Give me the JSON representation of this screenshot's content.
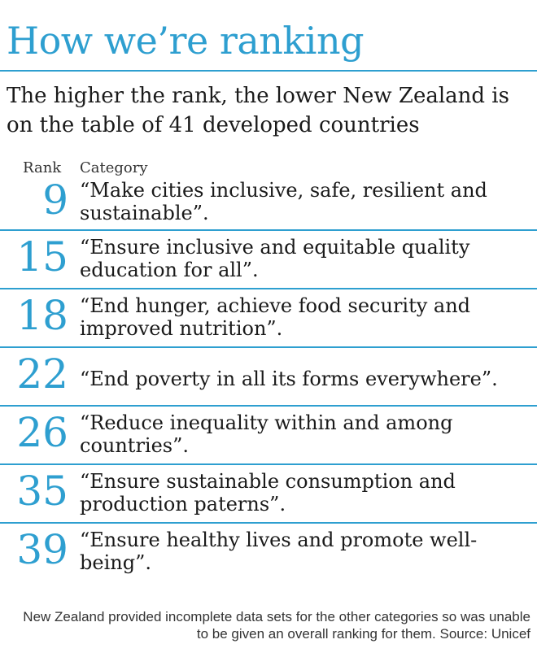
{
  "title": "How we’re ranking",
  "subtitle": "The higher the rank, the lower New Zealand is on the table of 41 developed countries",
  "headers": {
    "rank": "Rank",
    "category": "Category"
  },
  "footnote": "New Zealand provided incomplete data sets for the other categories so was unable to be given an overall ranking for them.  Source: Unicef",
  "colors": {
    "accent": "#2e9fd0",
    "text": "#1a1a1a"
  },
  "chart_data": {
    "type": "table",
    "columns": [
      "Rank",
      "Category"
    ],
    "rows": [
      {
        "rank": "9",
        "category": "“Make cities inclusive, safe, resilient and sustainable”."
      },
      {
        "rank": "15",
        "category": "“Ensure inclusive and equitable quality education for all”."
      },
      {
        "rank": "18",
        "category": "“End hunger, achieve food security and improved nutrition”."
      },
      {
        "rank": "22",
        "category": "“End poverty in all its forms everywhere”."
      },
      {
        "rank": "26",
        "category": "“Reduce inequality within and among countries”."
      },
      {
        "rank": "35",
        "category": "“Ensure sustainable consumption and production paterns”."
      },
      {
        "rank": "39",
        "category": "“Ensure healthy lives and promote well-being”."
      }
    ]
  }
}
